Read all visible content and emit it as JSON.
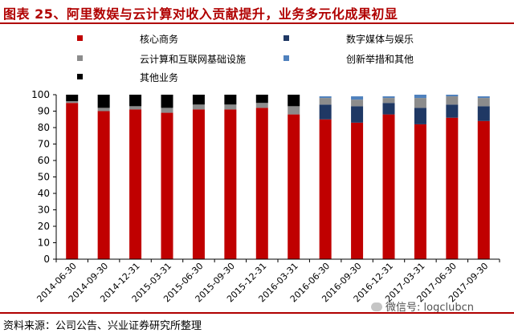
{
  "title": "图表 25、阿里数娱与云计算对收入贡献提升，业务多元化成果初显",
  "source": "资料来源：公司公告、兴业证券研究所整理",
  "watermark": "微信号: logclubcn",
  "colors": {
    "core": "#c00000",
    "cloud": "#8c8c8c",
    "other": "#000000",
    "media": "#1f3864",
    "innovation": "#4f81bd",
    "accent": "#b00000"
  },
  "chart_data": {
    "type": "bar",
    "stacked": true,
    "categories": [
      "2014-06-30",
      "2014-09-30",
      "2014-12-31",
      "2015-03-31",
      "2015-06-30",
      "2015-09-30",
      "2015-12-31",
      "2016-03-31",
      "2016-06-30",
      "2016-09-30",
      "2016-12-31",
      "2017-03-31",
      "2017-06-30",
      "2017-09-30"
    ],
    "ylim": [
      0,
      100
    ],
    "yticks": [
      0,
      10,
      20,
      30,
      40,
      50,
      60,
      70,
      80,
      90,
      100
    ],
    "grid": false,
    "legend_position": "top",
    "series": [
      {
        "name": "核心商务",
        "color_key": "core",
        "values": [
          95,
          90,
          91,
          89,
          91,
          91,
          92,
          88,
          85,
          83,
          88,
          82,
          86,
          84
        ]
      },
      {
        "name": "数字媒体与娱乐",
        "color_key": "media",
        "values": [
          0,
          0,
          0,
          0,
          0,
          0,
          0,
          0,
          9,
          10,
          7,
          10,
          8,
          9
        ]
      },
      {
        "name": "云计算和互联网基础设施",
        "color_key": "cloud",
        "values": [
          1,
          2,
          2,
          3,
          3,
          3,
          3,
          5,
          4,
          4,
          3,
          6,
          5,
          5
        ]
      },
      {
        "name": "创新举措和其他",
        "color_key": "innovation",
        "values": [
          0,
          0,
          0,
          0,
          0,
          0,
          0,
          0,
          1,
          2,
          1,
          2,
          1,
          1
        ]
      },
      {
        "name": "其他业务",
        "color_key": "other",
        "values": [
          4,
          8,
          7,
          8,
          6,
          6,
          5,
          7,
          0,
          0,
          0,
          0,
          0,
          0
        ]
      }
    ]
  },
  "legend": [
    {
      "name": "核心商务",
      "color_key": "core"
    },
    {
      "name": "数字媒体与娱乐",
      "color_key": "media"
    },
    {
      "name": "云计算和互联网基础设施",
      "color_key": "cloud"
    },
    {
      "name": "创新举措和其他",
      "color_key": "innovation"
    },
    {
      "name": "其他业务",
      "color_key": "other"
    }
  ]
}
